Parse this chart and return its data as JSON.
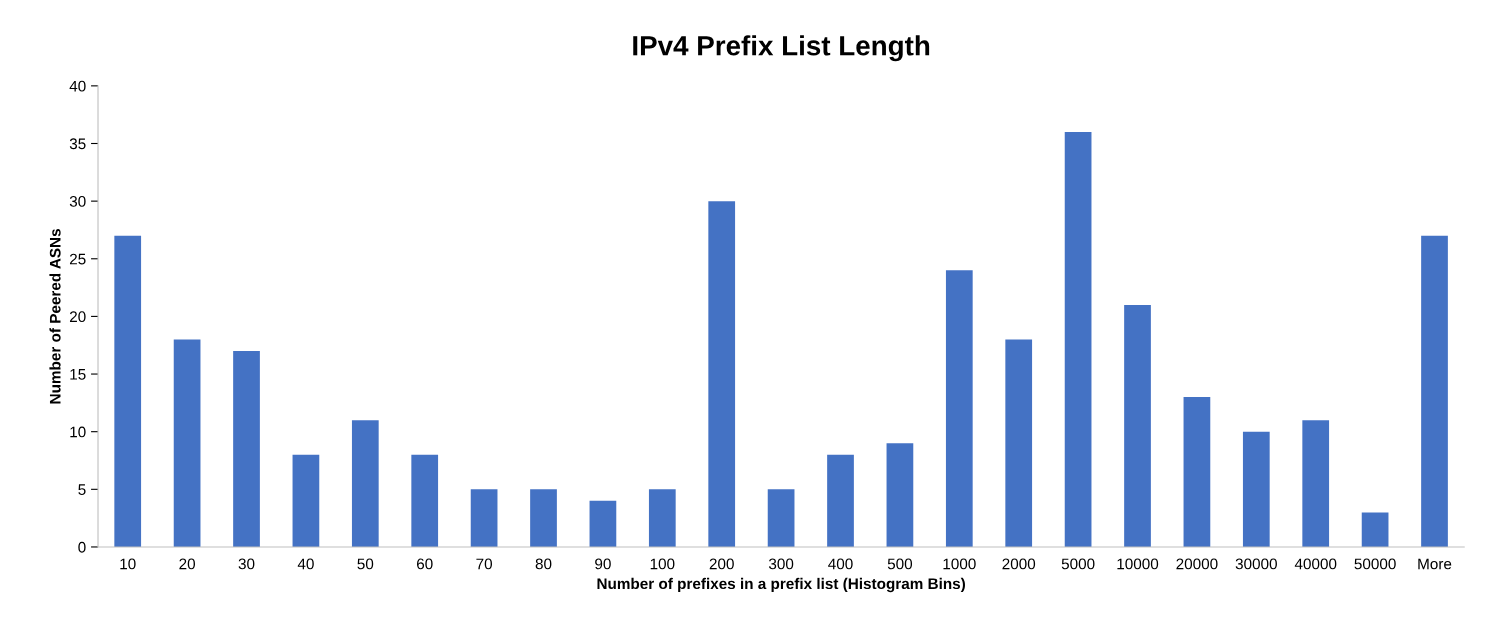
{
  "chart_data": {
    "type": "bar",
    "title": "IPv4 Prefix List Length",
    "xlabel": "Number of prefixes in a prefix list (Histogram Bins)",
    "ylabel": "Number of Peered ASNs",
    "categories": [
      "10",
      "20",
      "30",
      "40",
      "50",
      "60",
      "70",
      "80",
      "90",
      "100",
      "200",
      "300",
      "400",
      "500",
      "1000",
      "2000",
      "5000",
      "10000",
      "20000",
      "30000",
      "40000",
      "50000",
      "More"
    ],
    "values": [
      27,
      18,
      17,
      8,
      11,
      8,
      5,
      5,
      4,
      5,
      30,
      5,
      8,
      9,
      24,
      18,
      36,
      21,
      13,
      10,
      11,
      3,
      27
    ],
    "color": "#4472c4",
    "ylim": [
      0,
      40
    ],
    "yticks": [
      0,
      5,
      10,
      15,
      20,
      25,
      30,
      35,
      40
    ],
    "grid": false,
    "legend": false
  }
}
